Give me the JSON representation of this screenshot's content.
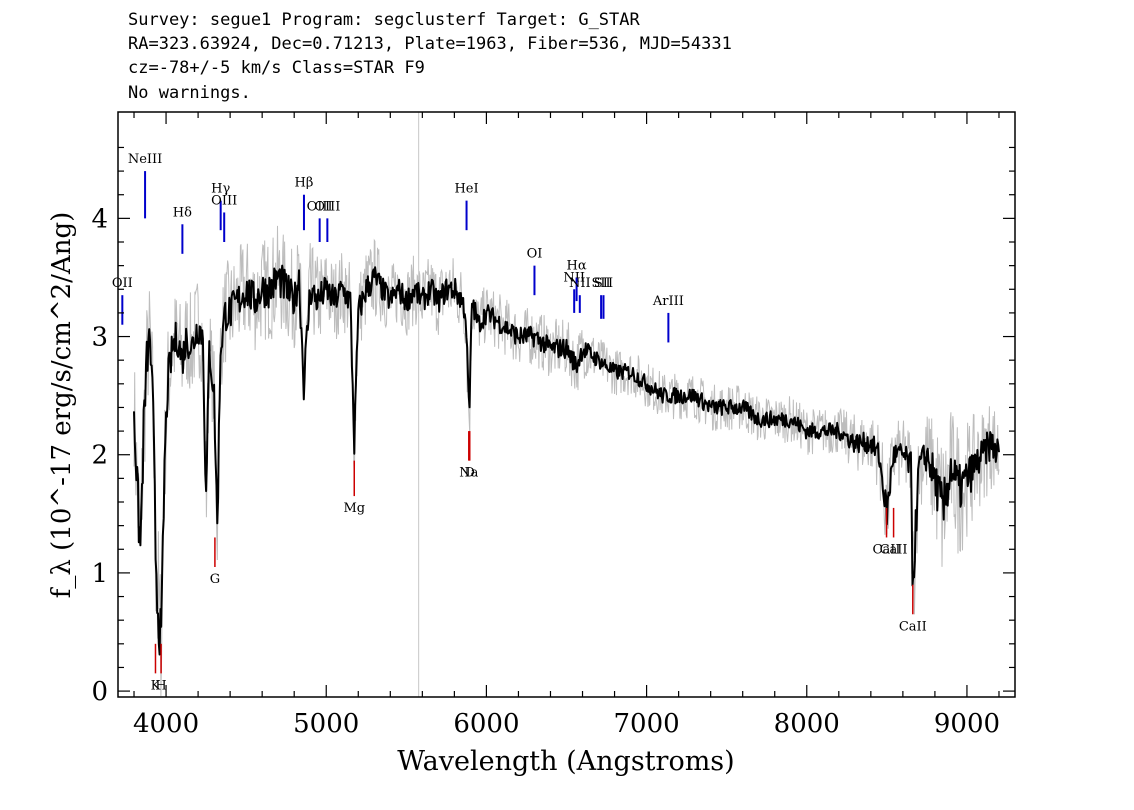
{
  "header": {
    "line1": "Survey: segue1 Program: segclusterf Target: G_STAR",
    "line2": "RA=323.63924, Dec=0.71213, Plate=1963, Fiber=536, MJD=54331",
    "line3": "cz=-78+/-5 km/s Class=STAR F9",
    "line4": "No warnings."
  },
  "chart_data": {
    "type": "line",
    "title": "",
    "xlabel": "Wavelength (Angstroms)",
    "ylabel": "f_λ (10^-17 erg/s/cm^2/Ang)",
    "xlim": [
      3700,
      9300
    ],
    "ylim": [
      -0.05,
      4.9
    ],
    "x_ticks": [
      4000,
      5000,
      6000,
      7000,
      8000,
      9000
    ],
    "y_ticks": [
      0,
      1,
      2,
      3,
      4
    ],
    "grid": false,
    "colors": {
      "flux": "#000000",
      "error_band": "#bdbdbd",
      "emission": "#0000cc",
      "absorption": "#cc0000"
    },
    "series": [
      {
        "x": [
          3800,
          3820,
          3840,
          3860,
          3880,
          3900,
          3920,
          3935,
          3950,
          3970,
          3990,
          4010,
          4040,
          4070,
          4100,
          4130,
          4160,
          4200,
          4230,
          4250,
          4270,
          4300,
          4320,
          4340,
          4370,
          4400,
          4450,
          4500,
          4550,
          4600,
          4650,
          4700,
          4750,
          4800,
          4830,
          4861,
          4900,
          4950,
          5000,
          5050,
          5100,
          5150,
          5175,
          5200,
          5250,
          5300,
          5350,
          5400,
          5450,
          5500,
          5550,
          5600,
          5650,
          5700,
          5750,
          5800,
          5850,
          5870,
          5893,
          5910,
          5950,
          6000,
          6100,
          6200,
          6300,
          6400,
          6500,
          6563,
          6600,
          6700,
          6800,
          6900,
          7000,
          7100,
          7200,
          7300,
          7400,
          7500,
          7600,
          7700,
          7800,
          7900,
          8000,
          8100,
          8200,
          8300,
          8400,
          8450,
          8500,
          8540,
          8600,
          8650,
          8662,
          8700,
          8750,
          8800,
          8850,
          8900,
          8950,
          9000,
          9050,
          9100,
          9150,
          9200
        ],
        "y": [
          2.4,
          1.7,
          1.2,
          2.2,
          2.8,
          3.0,
          2.3,
          1.2,
          0.7,
          0.4,
          1.9,
          2.6,
          2.9,
          3.0,
          2.8,
          3.0,
          2.9,
          3.1,
          3.0,
          1.6,
          2.9,
          2.5,
          1.4,
          2.9,
          3.2,
          3.2,
          3.3,
          3.4,
          3.3,
          3.4,
          3.4,
          3.5,
          3.4,
          3.3,
          3.5,
          2.6,
          3.4,
          3.3,
          3.4,
          3.3,
          3.4,
          3.3,
          2.1,
          3.2,
          3.4,
          3.5,
          3.4,
          3.3,
          3.4,
          3.3,
          3.4,
          3.3,
          3.4,
          3.3,
          3.4,
          3.4,
          3.3,
          3.2,
          2.3,
          3.3,
          3.1,
          3.2,
          3.1,
          3.0,
          3.0,
          2.9,
          2.9,
          2.75,
          2.9,
          2.8,
          2.7,
          2.7,
          2.6,
          2.5,
          2.5,
          2.5,
          2.4,
          2.4,
          2.4,
          2.3,
          2.3,
          2.3,
          2.2,
          2.2,
          2.2,
          2.1,
          2.1,
          2.0,
          1.5,
          2.0,
          2.0,
          1.9,
          0.9,
          1.9,
          2.0,
          1.8,
          1.5,
          1.9,
          1.7,
          1.8,
          1.9,
          2.0,
          2.1,
          2.0
        ],
        "band": [
          0.5,
          0.6,
          0.8,
          0.6,
          0.5,
          0.5,
          0.6,
          0.7,
          0.8,
          0.6,
          0.5,
          0.5,
          0.45,
          0.45,
          0.45,
          0.45,
          0.45,
          0.45,
          0.4,
          0.5,
          0.4,
          0.4,
          0.5,
          0.4,
          0.45,
          0.45,
          0.45,
          0.45,
          0.45,
          0.45,
          0.45,
          0.45,
          0.45,
          0.4,
          0.4,
          0.5,
          0.4,
          0.4,
          0.35,
          0.35,
          0.35,
          0.35,
          0.4,
          0.35,
          0.35,
          0.35,
          0.3,
          0.3,
          0.3,
          0.3,
          0.3,
          0.3,
          0.3,
          0.3,
          0.3,
          0.3,
          0.3,
          0.3,
          0.4,
          0.3,
          0.25,
          0.25,
          0.25,
          0.25,
          0.25,
          0.25,
          0.25,
          0.25,
          0.25,
          0.2,
          0.2,
          0.2,
          0.2,
          0.2,
          0.2,
          0.2,
          0.2,
          0.2,
          0.2,
          0.2,
          0.2,
          0.2,
          0.2,
          0.2,
          0.2,
          0.25,
          0.25,
          0.3,
          0.4,
          0.3,
          0.3,
          0.35,
          0.6,
          0.35,
          0.4,
          0.5,
          0.7,
          0.5,
          0.6,
          0.5,
          0.45,
          0.4,
          0.4,
          0.4
        ]
      }
    ],
    "emission_lines": [
      {
        "label": "NeIII",
        "x": 3869,
        "y0": 4.0,
        "y1": 4.4
      },
      {
        "label": "Hδ",
        "x": 4102,
        "y0": 3.7,
        "y1": 3.95
      },
      {
        "label": "Hγ",
        "x": 4341,
        "y0": 3.9,
        "y1": 4.15
      },
      {
        "label": "OIII",
        "x": 4363,
        "y0": 3.8,
        "y1": 4.05
      },
      {
        "label": "Hβ",
        "x": 4861,
        "y0": 3.9,
        "y1": 4.2
      },
      {
        "label": "OIII",
        "x": 4959,
        "y0": 3.8,
        "y1": 4.0
      },
      {
        "label": "OIII",
        "x": 5007,
        "y0": 3.8,
        "y1": 4.0
      },
      {
        "label": "HeI",
        "x": 5876,
        "y0": 3.9,
        "y1": 4.15
      },
      {
        "label": "OI",
        "x": 6300,
        "y0": 3.35,
        "y1": 3.6
      },
      {
        "label": "NII",
        "x": 6548,
        "y0": 3.2,
        "y1": 3.4
      },
      {
        "label": "Hα",
        "x": 6563,
        "y0": 3.3,
        "y1": 3.5
      },
      {
        "label": "NII",
        "x": 6583,
        "y0": 3.2,
        "y1": 3.35
      },
      {
        "label": "SII",
        "x": 6716,
        "y0": 3.15,
        "y1": 3.35
      },
      {
        "label": "SII",
        "x": 6731,
        "y0": 3.15,
        "y1": 3.35
      },
      {
        "label": "ArIII",
        "x": 7136,
        "y0": 2.95,
        "y1": 3.2
      },
      {
        "label": "OII",
        "x": 3727,
        "y0": 3.1,
        "y1": 3.35
      }
    ],
    "absorption_lines": [
      {
        "label": "K",
        "x": 3934,
        "y0": 0.15,
        "y1": 0.4
      },
      {
        "label": "H",
        "x": 3969,
        "y0": 0.15,
        "y1": 0.4
      },
      {
        "label": "G",
        "x": 4305,
        "y0": 1.05,
        "y1": 1.3
      },
      {
        "label": "Mg",
        "x": 5175,
        "y0": 1.65,
        "y1": 1.95
      },
      {
        "label": "Na",
        "x": 5890,
        "y0": 1.95,
        "y1": 2.2
      },
      {
        "label": "D",
        "x": 5896,
        "y0": 1.95,
        "y1": 2.2
      },
      {
        "label": "CaII",
        "x": 8498,
        "y0": 1.3,
        "y1": 1.55
      },
      {
        "label": "CaII",
        "x": 8542,
        "y0": 1.3,
        "y1": 1.55
      },
      {
        "label": "CaII",
        "x": 8662,
        "y0": 0.65,
        "y1": 0.9
      }
    ],
    "sky_line_x": 5577
  }
}
